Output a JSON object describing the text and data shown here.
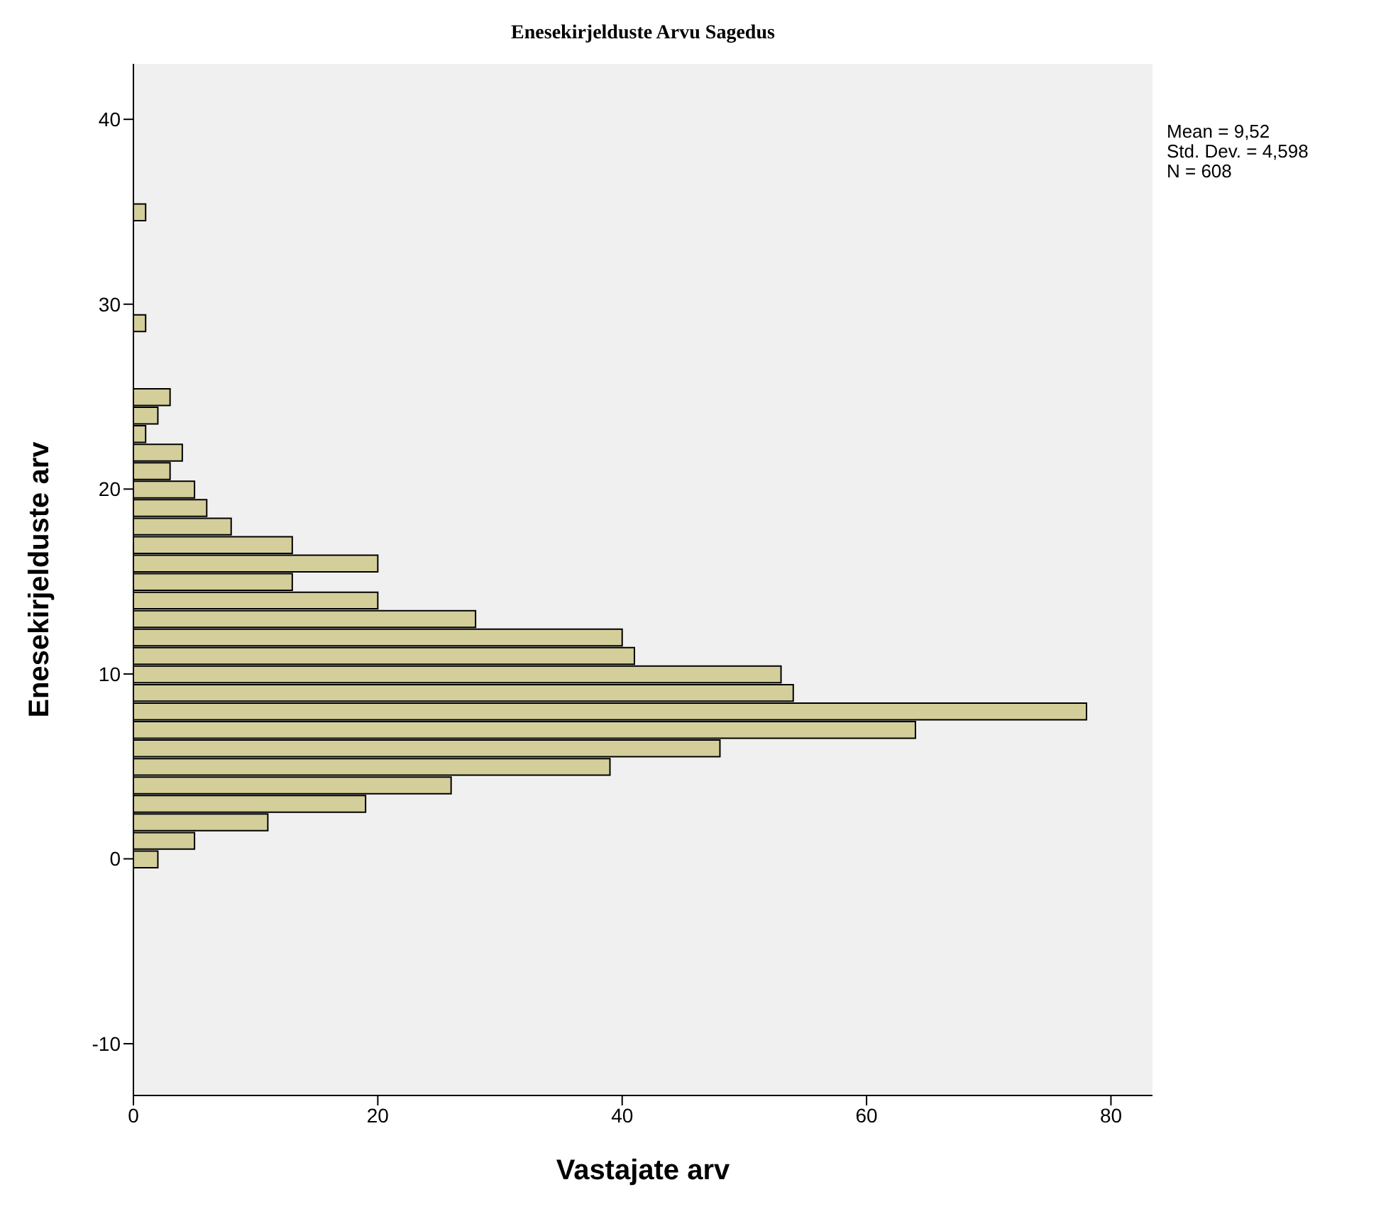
{
  "chart_data": {
    "type": "histogram",
    "orientation": "horizontal",
    "title": "Enesekirjelduste Arvu Sagedus",
    "xlabel": "Vastajate arv",
    "ylabel": "Enesekirjelduste arv",
    "bins": [
      -0.5,
      0.5,
      1.5,
      2.5,
      3.5,
      4.5,
      5.5,
      6.5,
      7.5,
      8.5,
      9.5,
      10.5,
      11.5,
      12.5,
      13.5,
      14.5,
      15.5,
      16.5,
      17.5,
      18.5,
      19.5,
      20.5,
      21.5,
      22.5,
      23.5,
      24.5,
      25.5,
      26.5,
      27.5,
      28.5,
      29.5,
      30.5,
      31.5,
      32.5,
      33.5,
      34.5,
      35.5
    ],
    "values": [
      2,
      5,
      11,
      19,
      26,
      39,
      48,
      64,
      78,
      54,
      53,
      41,
      40,
      28,
      20,
      13,
      20,
      13,
      8,
      6,
      5,
      3,
      4,
      1,
      2,
      3,
      0,
      0,
      0,
      1,
      0,
      0,
      0,
      0,
      0,
      1
    ],
    "color": "#d4cf9a",
    "xlim": [
      0,
      83.4
    ],
    "xticks": [
      0,
      20,
      40,
      60,
      80
    ],
    "ylim": [
      -12.8,
      43
    ],
    "yticks": [
      -10,
      0,
      10,
      20,
      30,
      40
    ],
    "annotations": [
      "Mean = 9,52",
      "Std. Dev. = 4,598",
      "N = 608"
    ]
  }
}
